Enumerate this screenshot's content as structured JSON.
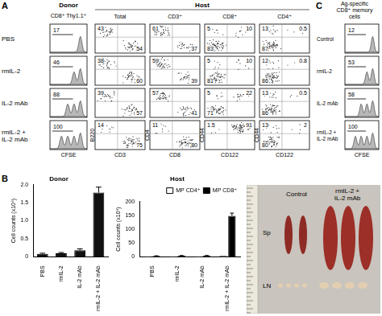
{
  "panel_labels": [
    "A",
    "B",
    "C"
  ],
  "panel_A": {
    "donor_header": "Donor",
    "host_header": "Host",
    "donor_column": "CD8⁺ Thy1.1⁺",
    "host_columns": [
      "Total",
      "CD3⁺",
      "CD8⁺",
      "CD4⁺"
    ],
    "donor_x_label": "CFSE",
    "host_axes": [
      {
        "x": "CD3",
        "y": "B220"
      },
      {
        "x": "CD8",
        "y": "CD4"
      },
      {
        "x": "CD122",
        "y": "CD44"
      },
      {
        "x": "CD122",
        "y": "CD44"
      }
    ],
    "rows": [
      {
        "label": "PBS",
        "donor_cfse": 17,
        "plots": [
          {
            "upper_left": 43,
            "lower_right": 54
          },
          {
            "upper_left": 61,
            "lower_right": 37
          },
          {
            "upper_left": 5,
            "upper_right": 10,
            "lower_left": 83
          },
          {
            "upper_left": 13,
            "upper_right": 0.5,
            "lower_left": 87
          }
        ]
      },
      {
        "label": "rmIL-2",
        "donor_cfse": 46,
        "plots": [
          {
            "upper_left": 38,
            "lower_right": 60
          },
          {
            "upper_left": 59,
            "lower_right": 39
          },
          {
            "upper_left": 5,
            "upper_right": 10,
            "lower_left": 81
          },
          {
            "upper_left": 12,
            "upper_right": 0.8,
            "lower_left": 86
          }
        ]
      },
      {
        "label": "IL-2 mAb",
        "donor_cfse": 88,
        "plots": [
          {
            "upper_left": 39,
            "lower_right": 57
          },
          {
            "upper_left": 57,
            "lower_right": 41
          },
          {
            "upper_left": 5,
            "upper_right": 22,
            "lower_left": 71
          },
          {
            "upper_left": 13,
            "upper_right": 0.5,
            "lower_left": 86
          }
        ]
      },
      {
        "label": "rmIL-2 + IL-2 mAb",
        "donor_cfse": 100,
        "plots": [
          {
            "upper_left": 14,
            "lower_right": 75
          },
          {
            "upper_left": 11,
            "lower_right": 80
          },
          {
            "upper_left": 1.5,
            "upper_right": 91
          },
          {
            "upper_left": 13,
            "upper_right": 2,
            "lower_left": 80
          }
        ]
      }
    ]
  },
  "chart_data": [
    {
      "type": "bar",
      "title": "Donor",
      "categories": [
        "PBS",
        "rmIL-2",
        "IL-2 mAb",
        "rmIL-2 + IL-2 mAb"
      ],
      "values": [
        0.08,
        0.1,
        0.18,
        1.78
      ],
      "errors": [
        0.02,
        0.02,
        0.04,
        0.15
      ],
      "color": "#111111",
      "ylabel": "Cell counts (x10⁶)",
      "ylim": [
        0,
        2
      ],
      "yticks": [
        0,
        0.5,
        {
          "value": 1,
          "label": "1.0"
        },
        1.5,
        {
          "value": 2,
          "label": "2.0"
        }
      ],
      "grid": false
    },
    {
      "type": "bar",
      "title": "Host",
      "categories": [
        "PBS",
        "rmIL-2",
        "IL-2 mAb",
        "rmIL-2 + IL-2 mAb"
      ],
      "series": [
        {
          "name": "MP CD4⁺",
          "color": "#ffffff",
          "values": [
            2,
            2,
            2,
            3
          ]
        },
        {
          "name": "MP CD8⁺",
          "color": "#000000",
          "values": [
            3,
            4,
            4,
            148
          ],
          "errors": [
            1,
            1,
            1,
            10
          ]
        }
      ],
      "ylabel": "Cell counts (x10⁶)",
      "ylim": [
        0,
        200
      ],
      "yticks": [
        0,
        50,
        100,
        150,
        200
      ],
      "legend": "top",
      "grid": false
    }
  ],
  "photo": {
    "groups": [
      "Control",
      "rmIL-2 + IL-2 mAb"
    ],
    "organs": [
      "Sp",
      "LN"
    ]
  },
  "panel_C": {
    "header": [
      "Ag-specific",
      "CD8⁺ memory",
      "cells"
    ],
    "x_label": "CFSE",
    "rows": [
      {
        "label": "Control",
        "cfse": 12
      },
      {
        "label": "rmIL-2",
        "cfse": 53
      },
      {
        "label": "IL-2 mAb",
        "cfse": 58
      },
      {
        "label": "rmIL-2 + IL-2 mAb",
        "cfse": 100
      }
    ]
  }
}
